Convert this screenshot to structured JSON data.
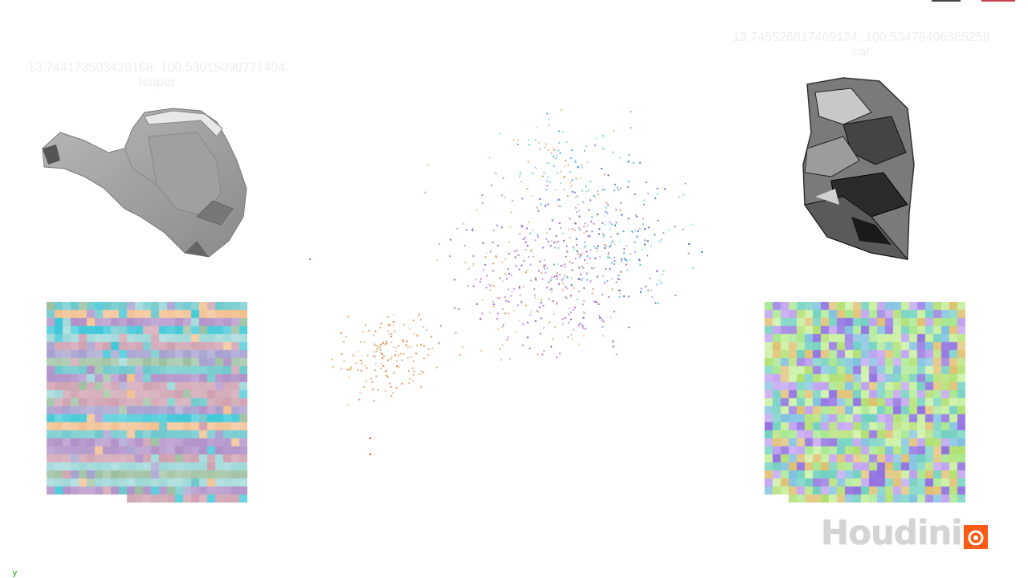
{
  "top_controls": {
    "left_color": "#444444",
    "right_color": "#c8404a"
  },
  "left_object": {
    "coords": "13.744173503428168, 100.53015030771404",
    "name": "teapot",
    "mesh_icon": "teapot-mesh",
    "mesh_color": "#9a9a9a"
  },
  "right_object": {
    "coords": "13.745526817409134, 100.53476406365259",
    "name": "car",
    "mesh_icon": "car-mesh",
    "mesh_color": "#555555"
  },
  "point_cloud": {
    "palette": [
      "#e07a3c",
      "#d8a060",
      "#b060c8",
      "#8050c0",
      "#50a0d8",
      "#40c8c8",
      "#2a60b0",
      "#e04040"
    ]
  },
  "left_texture": {
    "palette": [
      "#9fd8d8",
      "#6cc8cc",
      "#a6a0d0",
      "#cfa0b0",
      "#9cc0a0",
      "#f2c090",
      "#40c8d8",
      "#b090c8"
    ]
  },
  "right_texture": {
    "palette": [
      "#a8e890",
      "#c8f0a0",
      "#9070e0",
      "#b0e070",
      "#e0c070",
      "#70d0c0",
      "#c0a0f0",
      "#80c0e0"
    ]
  },
  "logo": {
    "text": "Houdini",
    "badge_color": "#ff5a14"
  },
  "axis": {
    "label": "y"
  }
}
